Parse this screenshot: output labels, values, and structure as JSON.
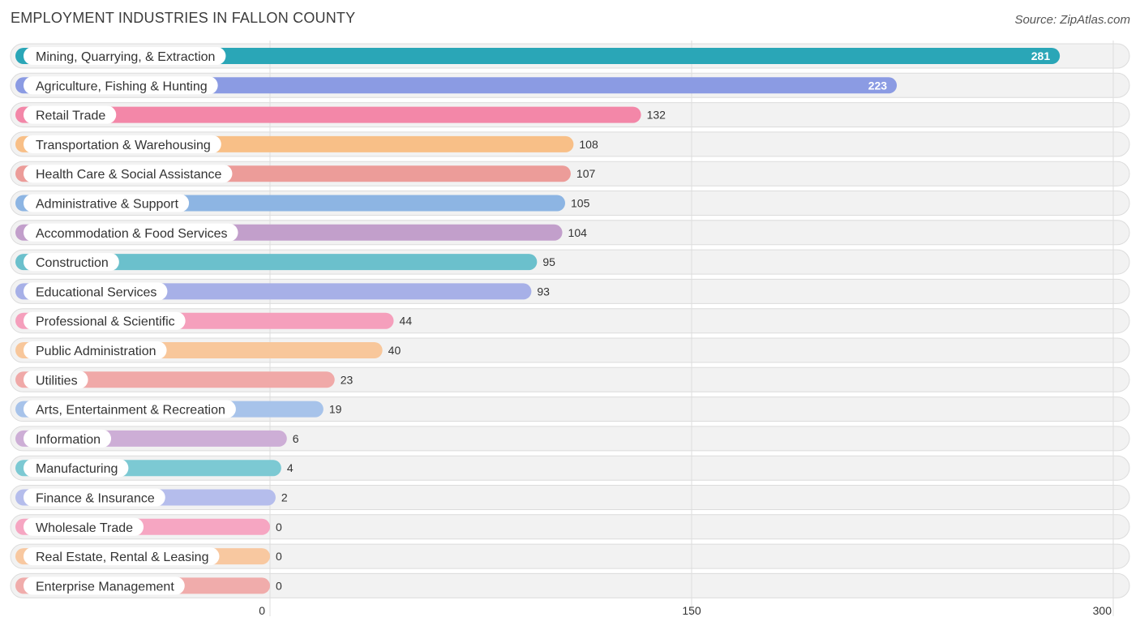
{
  "header": {
    "title": "EMPLOYMENT INDUSTRIES IN FALLON COUNTY",
    "source": "Source: ZipAtlas.com"
  },
  "chart_data": {
    "type": "bar",
    "orientation": "horizontal",
    "title": "EMPLOYMENT INDUSTRIES IN FALLON COUNTY",
    "xlabel": "",
    "ylabel": "",
    "xlim": [
      0,
      300
    ],
    "xticks": [
      0,
      150,
      300
    ],
    "xtick_labels": [
      "0",
      "150",
      "300"
    ],
    "grid": true,
    "categories": [
      "Mining, Quarrying, & Extraction",
      "Agriculture, Fishing & Hunting",
      "Retail Trade",
      "Transportation & Warehousing",
      "Health Care & Social Assistance",
      "Administrative & Support",
      "Accommodation & Food Services",
      "Construction",
      "Educational Services",
      "Professional & Scientific",
      "Public Administration",
      "Utilities",
      "Arts, Entertainment & Recreation",
      "Information",
      "Manufacturing",
      "Finance & Insurance",
      "Wholesale Trade",
      "Real Estate, Rental & Leasing",
      "Enterprise Management"
    ],
    "values": [
      281,
      223,
      132,
      108,
      107,
      105,
      104,
      95,
      93,
      44,
      40,
      23,
      19,
      6,
      4,
      2,
      0,
      0,
      0
    ],
    "value_labels": [
      "281",
      "223",
      "132",
      "108",
      "107",
      "105",
      "104",
      "95",
      "93",
      "44",
      "40",
      "23",
      "19",
      "6",
      "4",
      "2",
      "0",
      "0",
      "0"
    ],
    "colors": [
      "#2aa6b7",
      "#8b9be3",
      "#f387a8",
      "#f8bf87",
      "#ec9c99",
      "#8db5e3",
      "#c29fcb",
      "#6bc0cc",
      "#a7b0e7",
      "#f59fbc",
      "#f8c79b",
      "#f0a9a8",
      "#a7c3ea",
      "#cdaed6",
      "#7cc9d3",
      "#b5bdec",
      "#f6a6c2",
      "#f8c8a0",
      "#f0acab"
    ]
  }
}
